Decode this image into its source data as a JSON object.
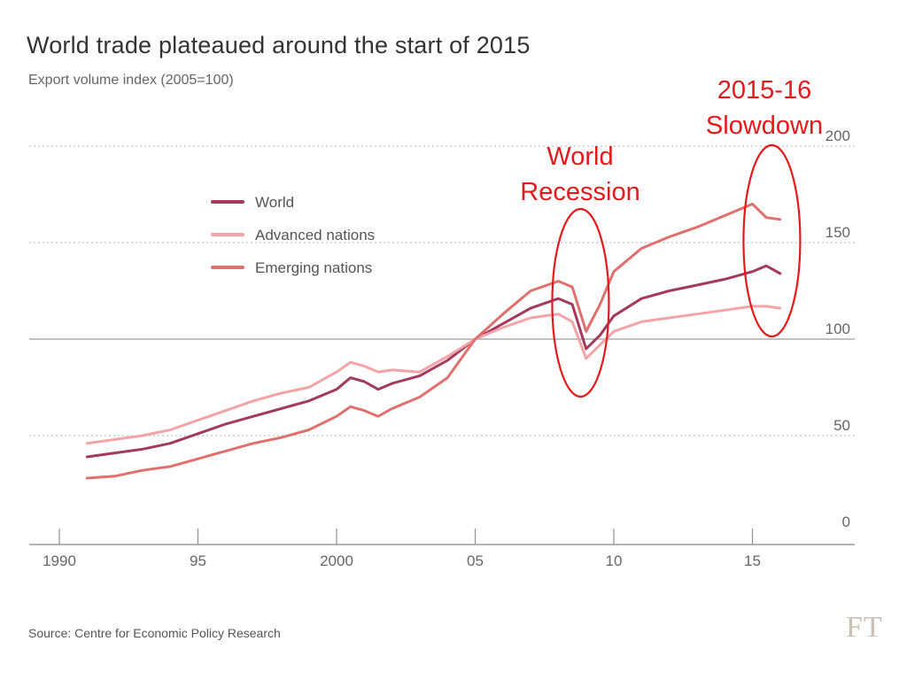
{
  "chart_data": {
    "type": "line",
    "title": "World trade plateaued around the start of 2015",
    "subtitle": "Export volume index (2005=100)",
    "source": "Source: Centre for Economic Policy Research",
    "logo": "FT",
    "x_ticks": [
      {
        "value": 1990,
        "label": "1990"
      },
      {
        "value": 1995,
        "label": "95"
      },
      {
        "value": 2000,
        "label": "2000"
      },
      {
        "value": 2005,
        "label": "05"
      },
      {
        "value": 2010,
        "label": "10"
      },
      {
        "value": 2015,
        "label": "15"
      }
    ],
    "y_ticks": [
      {
        "value": 0,
        "label": "0"
      },
      {
        "value": 50,
        "label": "50"
      },
      {
        "value": 100,
        "label": "100"
      },
      {
        "value": 150,
        "label": "150"
      },
      {
        "value": 200,
        "label": "200"
      }
    ],
    "xlim": [
      1989,
      2018.5
    ],
    "ylim": [
      0,
      200
    ],
    "grid": "dotted horizontal",
    "legend_position": "top-left",
    "series": [
      {
        "name": "World",
        "color": "#a33a5e",
        "x": [
          1991,
          1992,
          1993,
          1994,
          1995,
          1996,
          1997,
          1998,
          1999,
          2000,
          2000.5,
          2001,
          2001.5,
          2002,
          2003,
          2004,
          2005,
          2006,
          2007,
          2008,
          2008.5,
          2009,
          2009.5,
          2010,
          2011,
          2012,
          2013,
          2014,
          2015,
          2015.5,
          2016
        ],
        "y": [
          39,
          41,
          43,
          46,
          51,
          56,
          60,
          64,
          68,
          74,
          80,
          78,
          74,
          77,
          81,
          89,
          100,
          108,
          116,
          121,
          118,
          95,
          102,
          112,
          121,
          125,
          128,
          131,
          135,
          138,
          134
        ]
      },
      {
        "name": "Advanced nations",
        "color": "#f2a4a6",
        "x": [
          1991,
          1992,
          1993,
          1994,
          1995,
          1996,
          1997,
          1998,
          1999,
          2000,
          2000.5,
          2001,
          2001.5,
          2002,
          2003,
          2004,
          2005,
          2006,
          2007,
          2008,
          2008.5,
          2009,
          2009.5,
          2010,
          2011,
          2012,
          2013,
          2014,
          2015,
          2015.5,
          2016
        ],
        "y": [
          46,
          48,
          50,
          53,
          58,
          63,
          68,
          72,
          75,
          83,
          88,
          86,
          83,
          84,
          83,
          91,
          100,
          106,
          111,
          113,
          109,
          90,
          97,
          104,
          109,
          111,
          113,
          115,
          117,
          117,
          116
        ]
      },
      {
        "name": "Emerging nations",
        "color": "#e0706d",
        "x": [
          1991,
          1992,
          1993,
          1994,
          1995,
          1996,
          1997,
          1998,
          1999,
          2000,
          2000.5,
          2001,
          2001.5,
          2002,
          2003,
          2004,
          2005,
          2006,
          2007,
          2008,
          2008.5,
          2009,
          2009.5,
          2010,
          2011,
          2012,
          2013,
          2014,
          2015,
          2015.5,
          2016
        ],
        "y": [
          28,
          29,
          32,
          34,
          38,
          42,
          46,
          49,
          53,
          60,
          65,
          63,
          60,
          64,
          70,
          80,
          100,
          113,
          125,
          130,
          127,
          104,
          118,
          135,
          147,
          153,
          158,
          164,
          170,
          163,
          162
        ]
      }
    ],
    "annotations": [
      {
        "label": "World Recession",
        "lines": [
          "World",
          "Recession"
        ],
        "x_center": 2008.8,
        "y_center": 115,
        "color": "#e31a1c"
      },
      {
        "label": "2015-16 Slowdown",
        "lines": [
          "2015-16",
          "Slowdown"
        ],
        "x_center": 2015.7,
        "y_center": 150,
        "color": "#e31a1c"
      }
    ]
  }
}
